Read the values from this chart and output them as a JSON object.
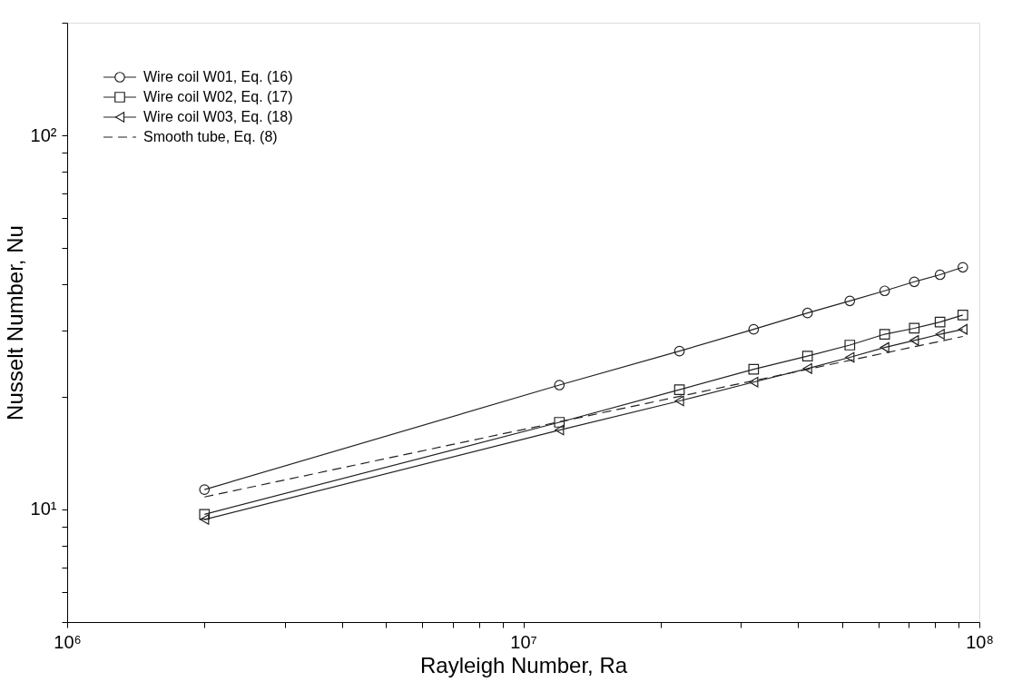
{
  "chart_data": {
    "type": "line",
    "xlabel": "Rayleigh Number, Ra",
    "ylabel": "Nusselt Number, Nu",
    "log": "xy",
    "grid": false,
    "legend": "top left",
    "xlim": [
      1000000,
      100000000
    ],
    "ylim": [
      5,
      200
    ],
    "xticks": [
      {
        "value": 1000000,
        "label": "10⁶"
      },
      {
        "value": 2000000,
        "label": null
      },
      {
        "value": 3000000,
        "label": null
      },
      {
        "value": 4000000,
        "label": null
      },
      {
        "value": 5000000,
        "label": null
      },
      {
        "value": 6000000,
        "label": null
      },
      {
        "value": 7000000,
        "label": null
      },
      {
        "value": 8000000,
        "label": null
      },
      {
        "value": 9000000,
        "label": null
      },
      {
        "value": 10000000,
        "label": "10⁷"
      },
      {
        "value": 20000000,
        "label": null
      },
      {
        "value": 30000000,
        "label": null
      },
      {
        "value": 40000000,
        "label": null
      },
      {
        "value": 50000000,
        "label": null
      },
      {
        "value": 60000000,
        "label": null
      },
      {
        "value": 70000000,
        "label": null
      },
      {
        "value": 80000000,
        "label": null
      },
      {
        "value": 90000000,
        "label": null
      },
      {
        "value": 100000000,
        "label": "10⁸"
      }
    ],
    "yticks": [
      {
        "value": 5,
        "label": null
      },
      {
        "value": 6,
        "label": null
      },
      {
        "value": 7,
        "label": null
      },
      {
        "value": 8,
        "label": null
      },
      {
        "value": 9,
        "label": null
      },
      {
        "value": 10,
        "label": "10¹"
      },
      {
        "value": 20,
        "label": null
      },
      {
        "value": 30,
        "label": null
      },
      {
        "value": 40,
        "label": null
      },
      {
        "value": 50,
        "label": null
      },
      {
        "value": 60,
        "label": null
      },
      {
        "value": 70,
        "label": null
      },
      {
        "value": 80,
        "label": null
      },
      {
        "value": 90,
        "label": null
      },
      {
        "value": 100,
        "label": "10²"
      },
      {
        "value": 200,
        "label": null
      }
    ],
    "x": [
      2000000,
      12000000,
      22000000,
      32000000,
      42000000,
      52000000,
      62000000,
      72000000,
      82000000,
      92000000
    ],
    "series": [
      {
        "name": "Wire coil W01, Eq. (16)",
        "color": "#222222",
        "marker": "circle",
        "line_style": "solid",
        "values": [
          11.3,
          21.5,
          26.5,
          30.3,
          33.5,
          36.1,
          38.4,
          40.6,
          42.4,
          44.4
        ]
      },
      {
        "name": "Wire coil W02, Eq. (17)",
        "color": "#222222",
        "marker": "square",
        "line_style": "solid",
        "values": [
          9.7,
          17.1,
          20.9,
          23.7,
          25.7,
          27.5,
          29.4,
          30.5,
          31.7,
          33.1
        ]
      },
      {
        "name": "Wire coil W03, Eq. (18)",
        "color": "#222222",
        "marker": "triangle-left",
        "line_style": "solid",
        "values": [
          9.4,
          16.3,
          19.5,
          21.9,
          23.8,
          25.5,
          27.1,
          28.3,
          29.4,
          30.3
        ]
      },
      {
        "name": "Smooth tube,  Eq. (8)",
        "color": "#222222",
        "marker": "none",
        "line_style": "dashed",
        "x": [
          2000000,
          92000000
        ],
        "values": [
          10.8,
          29.0
        ]
      }
    ]
  }
}
